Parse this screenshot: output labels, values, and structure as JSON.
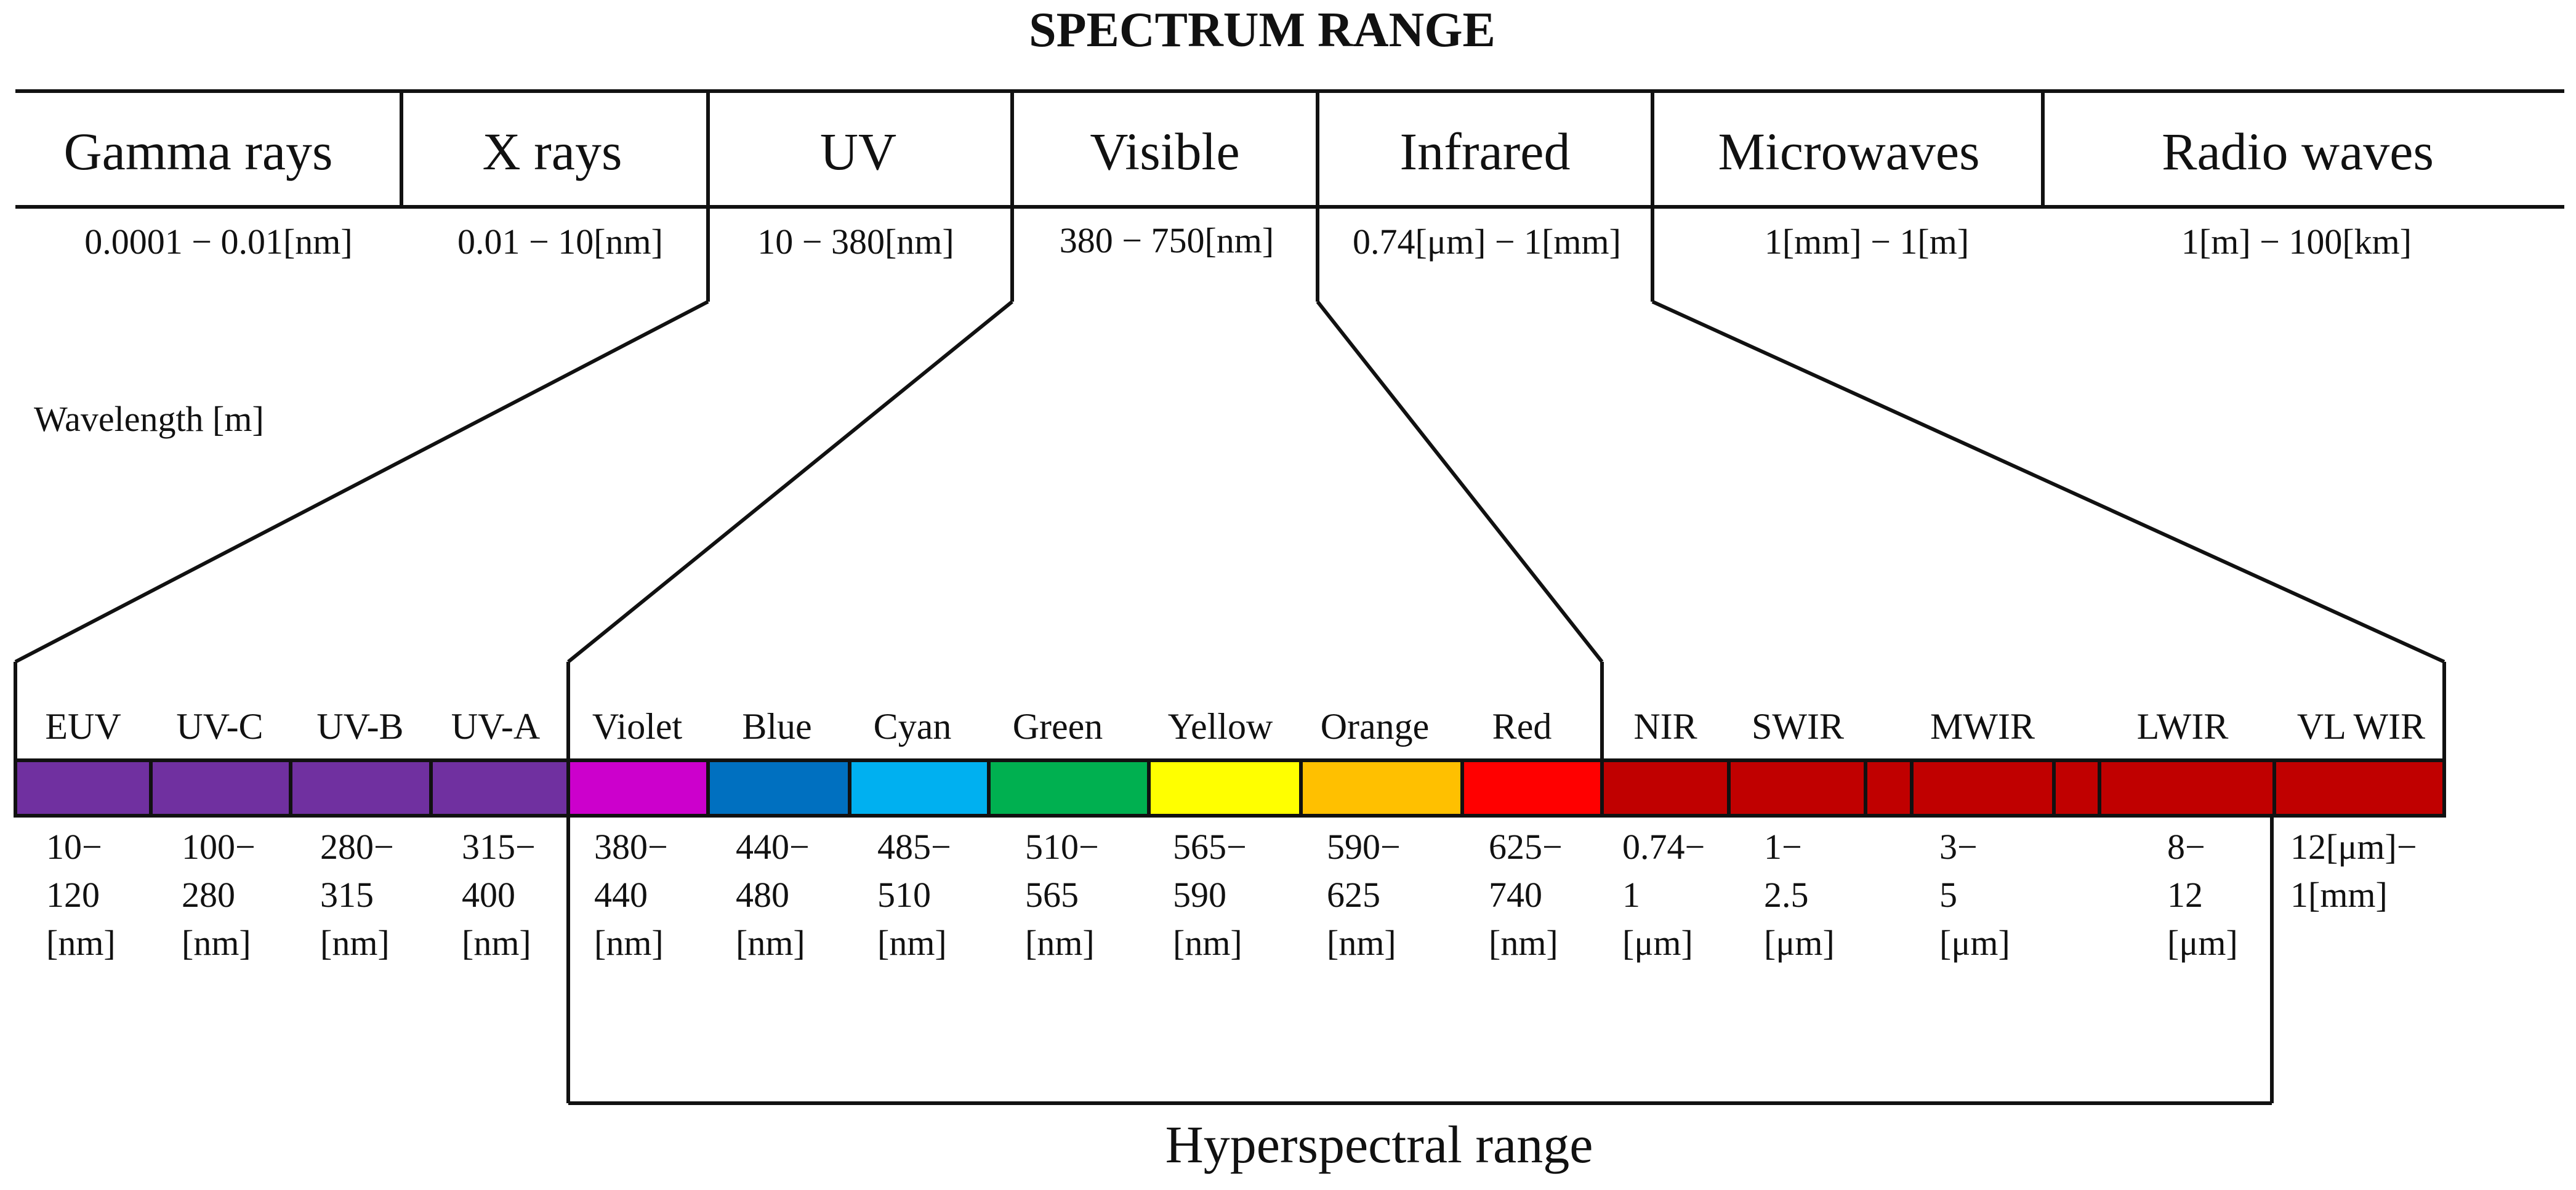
{
  "title": "SPECTRUM RANGE",
  "wavelength_label": "Wavelength [m]",
  "hyperspectral_label": "Hyperspectral range",
  "categories": [
    {
      "label": "Gamma rays",
      "range": "0.0001 − 0.01[nm]"
    },
    {
      "label": "X rays",
      "range": "0.01 − 10[nm]"
    },
    {
      "label": "UV",
      "range": "10 − 380[nm]"
    },
    {
      "label": "Visible",
      "range": "380 − 750[nm]"
    },
    {
      "label": "Infrared",
      "range": "0.74[μm] − 1[mm]"
    },
    {
      "label": "Microwaves",
      "range": "1[mm] − 1[m]"
    },
    {
      "label": "Radio waves",
      "range": "1[m] − 100[km]"
    }
  ],
  "bands": [
    {
      "label": "EUV",
      "color": "#7030a0",
      "range": [
        "10−",
        "120",
        "[nm]"
      ]
    },
    {
      "label": "UV-C",
      "color": "#7030a0",
      "range": [
        "100−",
        "280",
        "[nm]"
      ]
    },
    {
      "label": "UV-B",
      "color": "#7030a0",
      "range": [
        "280−",
        "315",
        "[nm]"
      ]
    },
    {
      "label": "UV-A",
      "color": "#7030a0",
      "range": [
        "315−",
        "400",
        "[nm]"
      ]
    },
    {
      "label": "Violet",
      "color": "#cc00cc",
      "range": [
        "380−",
        "440",
        "[nm]"
      ]
    },
    {
      "label": "Blue",
      "color": "#0070c0",
      "range": [
        "440−",
        "480",
        "[nm]"
      ]
    },
    {
      "label": "Cyan",
      "color": "#00b0f0",
      "range": [
        "485−",
        "510",
        "[nm]"
      ]
    },
    {
      "label": "Green",
      "color": "#00b050",
      "range": [
        "510−",
        "565",
        "[nm]"
      ]
    },
    {
      "label": "Yellow",
      "color": "#ffff00",
      "range": [
        "565−",
        "590",
        "[nm]"
      ]
    },
    {
      "label": "Orange",
      "color": "#ffc000",
      "range": [
        "590−",
        "625",
        "[nm]"
      ]
    },
    {
      "label": "Red",
      "color": "#ff0000",
      "range": [
        "625−",
        "740",
        "[nm]"
      ]
    },
    {
      "label": "NIR",
      "color": "#c00000",
      "range": [
        "0.74−",
        "1",
        "[μm]"
      ]
    },
    {
      "label": "SWIR",
      "color": "#c00000",
      "range": [
        "1−",
        "2.5",
        "[μm]"
      ]
    },
    {
      "label": "",
      "color": "#c00000",
      "range": []
    },
    {
      "label": "MWIR",
      "color": "#c00000",
      "range": [
        "3−",
        "5",
        "[μm]"
      ]
    },
    {
      "label": "",
      "color": "#c00000",
      "range": []
    },
    {
      "label": "LWIR",
      "color": "#c00000",
      "range": [
        "8−",
        "12",
        "[μm]"
      ]
    },
    {
      "label": "VL WIR",
      "color": "#c00000",
      "range": [
        "12[μm]−",
        "1[mm]"
      ]
    }
  ]
}
